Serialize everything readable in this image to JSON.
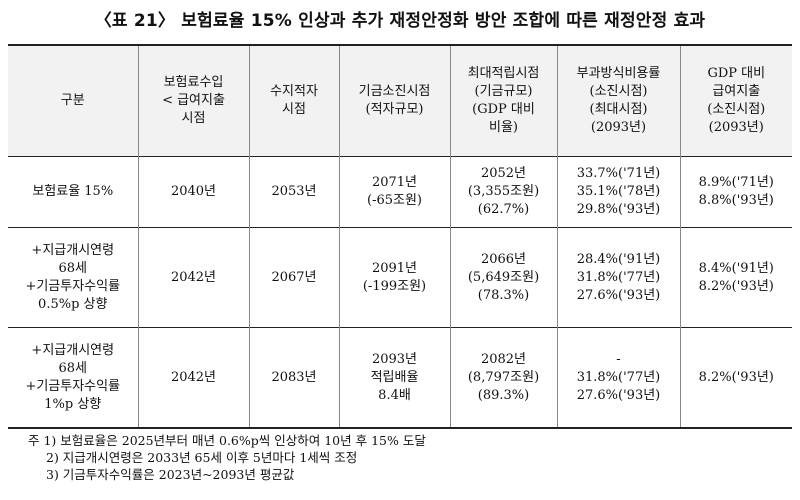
{
  "title": "〈표 21〉 보험료율 15% 인상과 추가 재정안정화 방안 조합에 따른 재정안정 효과",
  "headers": [
    [
      "구분"
    ],
    [
      "보험료수입",
      "< 급여지출",
      "시점"
    ],
    [
      "수지적자",
      "시점"
    ],
    [
      "기금소진시점",
      "(적자규모)"
    ],
    [
      "최대적립시점",
      "(기금규모)",
      "(GDP 대비",
      "비율)"
    ],
    [
      "부과방식비용률",
      "(소진시점)",
      "(최대시점)",
      "(2093년)"
    ],
    [
      "GDP 대비",
      "급여지출",
      "(소진시점)",
      "(2093년)"
    ]
  ],
  "rows": [
    {
      "label": [
        "보험료율 15%"
      ],
      "cells": [
        [
          "2040년"
        ],
        [
          "2053년"
        ],
        [
          "2071년",
          "(-65조원)"
        ],
        [
          "2052년",
          "(3,355조원)",
          "(62.7%)"
        ],
        [
          "33.7%('71년)",
          "35.1%('78년)",
          "29.8%('93년)"
        ],
        [
          "8.9%('71년)",
          "8.8%('93년)"
        ]
      ]
    },
    {
      "label": [
        "+지급개시연령",
        "68세",
        "+기금투자수익률",
        "0.5%p 상향"
      ],
      "cells": [
        [
          "2042년"
        ],
        [
          "2067년"
        ],
        [
          "2091년",
          "(-199조원)"
        ],
        [
          "2066년",
          "(5,649조원)",
          "(78.3%)"
        ],
        [
          "28.4%('91년)",
          "31.8%('77년)",
          "27.6%('93년)"
        ],
        [
          "8.4%('91년)",
          "8.2%('93년)"
        ]
      ]
    },
    {
      "label": [
        "+지급개시연령",
        "68세",
        "+기금투자수익률",
        "1%p 상향"
      ],
      "cells": [
        [
          "2042년"
        ],
        [
          "2083년"
        ],
        [
          "2093년",
          "적립배율",
          "8.4배"
        ],
        [
          "2082년",
          "(8,797조원)",
          "(89.3%)"
        ],
        [
          "-",
          "31.8%('77년)",
          "27.6%('93년)"
        ],
        [
          "8.2%('93년)"
        ]
      ]
    }
  ],
  "notes": [
    "주 1) 보험료율은 2025년부터 매년 0.6%p씩 인상하여 10년 후 15% 도달",
    "2) 지급개시연령은 2033년 65세 이후 5년마다 1세씩 조정",
    "3) 기금투자수익률은 2023년~2093년 평균값"
  ]
}
